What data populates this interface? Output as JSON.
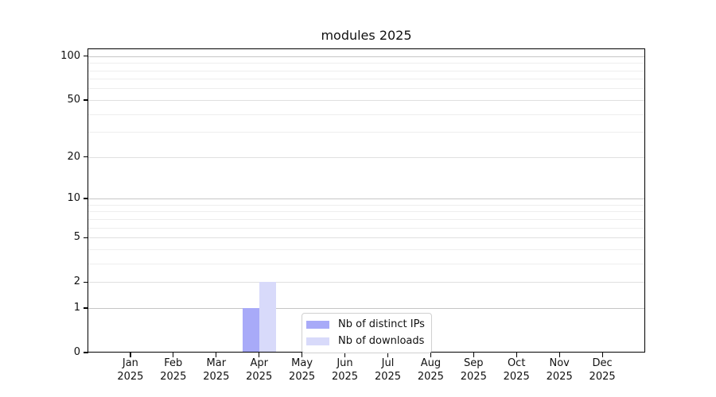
{
  "chart_data": {
    "type": "bar",
    "title": "modules 2025",
    "categories": [
      "Jan",
      "Feb",
      "Mar",
      "Apr",
      "May",
      "Jun",
      "Jul",
      "Aug",
      "Sep",
      "Oct",
      "Nov",
      "Dec"
    ],
    "category_year": "2025",
    "series": [
      {
        "name": "Nb of distinct IPs",
        "color": "#a8aaf8",
        "values": [
          0,
          0,
          0,
          1,
          0,
          0,
          0,
          0,
          0,
          0,
          0,
          0
        ]
      },
      {
        "name": "Nb of downloads",
        "color": "#d8dafa",
        "values": [
          0,
          0,
          0,
          2,
          0,
          0,
          0,
          0,
          0,
          0,
          0,
          0
        ]
      }
    ],
    "y_axis": {
      "scale": "log1p",
      "ylim": [
        0,
        112.8
      ],
      "major_ticks": [
        0,
        1,
        2,
        5,
        10,
        20,
        50,
        100
      ],
      "major_tick_labels": [
        "0",
        "1",
        "2",
        "5",
        "10",
        "20",
        "50",
        "100"
      ],
      "decade_gridlines": [
        1,
        10,
        100
      ],
      "minor_gridlines": [
        3,
        4,
        6,
        7,
        8,
        9,
        30,
        40,
        60,
        70,
        80,
        90
      ]
    },
    "x_axis": {
      "label_line2": "2025"
    },
    "legend": {
      "position": "lower center"
    },
    "grid": true,
    "background": "#ffffff"
  }
}
